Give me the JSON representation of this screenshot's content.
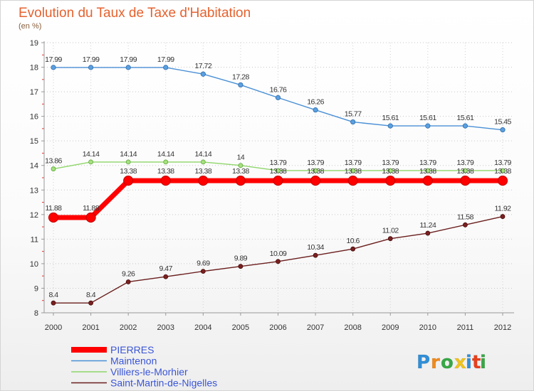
{
  "chart_data": {
    "type": "line",
    "title": "Evolution du Taux de Taxe d'Habitation",
    "subtitle": "(en %)",
    "x": [
      "2000",
      "2001",
      "2002",
      "2003",
      "2004",
      "2005",
      "2006",
      "2007",
      "2008",
      "2009",
      "2010",
      "2011",
      "2012"
    ],
    "ylim": [
      8,
      19
    ],
    "yticks": [
      8,
      9,
      10,
      11,
      12,
      13,
      14,
      15,
      16,
      17,
      18,
      19
    ],
    "grid": true,
    "legend_position": "bottom-left",
    "series": [
      {
        "name": "PIERRES",
        "color": "#ff0000",
        "values": [
          11.88,
          11.88,
          13.38,
          13.38,
          13.38,
          13.38,
          13.38,
          13.38,
          13.38,
          13.38,
          13.38,
          13.38,
          13.38
        ],
        "labels": [
          "11.88",
          "11.88",
          "13.38",
          "13.38",
          "13.38",
          "13.38",
          "13.38",
          "13.38",
          "13.38",
          "13.38",
          "13.38",
          "13.38",
          "13.38"
        ]
      },
      {
        "name": "Maintenon",
        "color": "#4a90d6",
        "values": [
          17.99,
          17.99,
          17.99,
          17.99,
          17.72,
          17.28,
          16.76,
          16.26,
          15.77,
          15.61,
          15.61,
          15.61,
          15.45
        ],
        "labels": [
          "17.99",
          "17.99",
          "17.99",
          "17.99",
          "17.72",
          "17.28",
          "16.76",
          "16.26",
          "15.77",
          "15.61",
          "15.61",
          "15.61",
          "15.45"
        ]
      },
      {
        "name": "Villiers-le-Morhier",
        "color": "#8fd66a",
        "values": [
          13.86,
          14.14,
          14.14,
          14.14,
          14.14,
          14.0,
          13.79,
          13.79,
          13.79,
          13.79,
          13.79,
          13.79,
          13.79
        ],
        "labels": [
          "13.86",
          "14.14",
          "14.14",
          "14.14",
          "14.14",
          "14",
          "13.79",
          "13.79",
          "13.79",
          "13.79",
          "13.79",
          "13.79",
          "13.79"
        ]
      },
      {
        "name": "Saint-Martin-de-Nigelles",
        "color": "#6b1e1e",
        "values": [
          8.4,
          8.4,
          9.26,
          9.47,
          9.69,
          9.89,
          10.09,
          10.34,
          10.6,
          11.02,
          11.24,
          11.58,
          11.92
        ],
        "labels": [
          "8.4",
          "8.4",
          "9.26",
          "9.47",
          "9.69",
          "9.89",
          "10.09",
          "10.34",
          "10.6",
          "11.02",
          "11.24",
          "11.58",
          "11.92"
        ]
      }
    ]
  },
  "logo": {
    "text": "Proxiti",
    "letter_colors": [
      "#2f8fd8",
      "#f08a1c",
      "#35a845",
      "#f0c419",
      "#2f8fd8",
      "#e8401c",
      "#35a845"
    ]
  }
}
